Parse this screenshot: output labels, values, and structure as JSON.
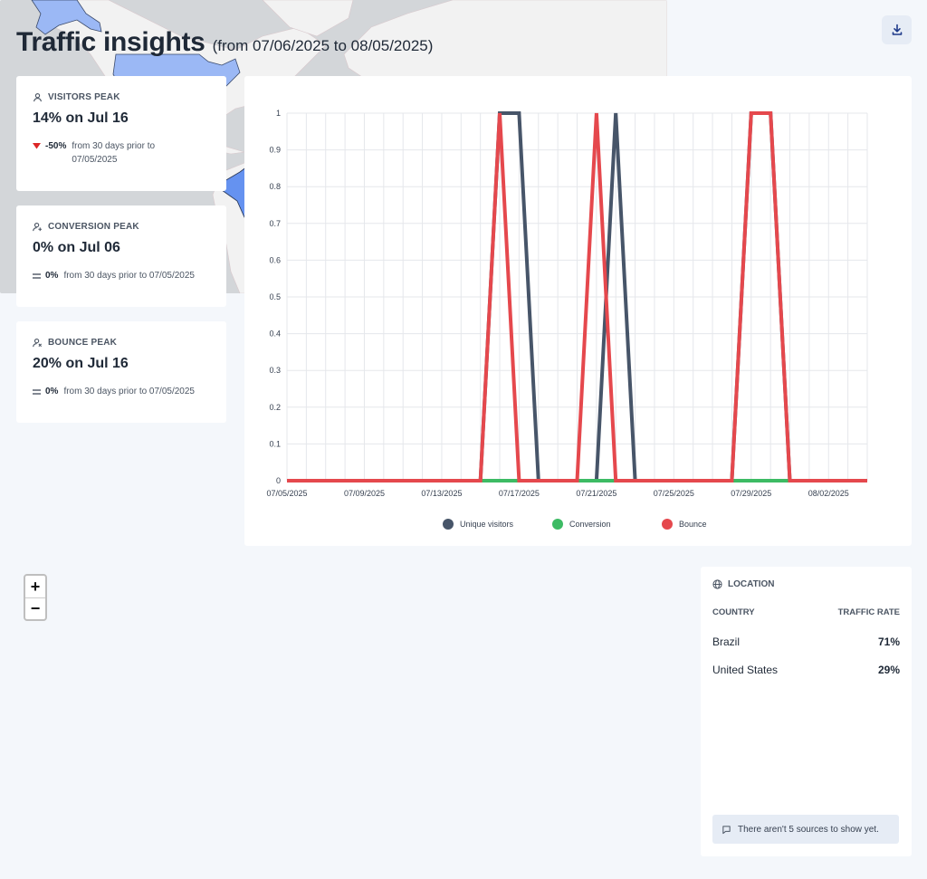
{
  "header": {
    "title": "Traffic insights",
    "range": "(from 07/06/2025 to 08/05/2025)",
    "download_icon": "download-icon"
  },
  "stats": [
    {
      "label": "VISITORS PEAK",
      "value": "14% on Jul 16",
      "delta": "-50%",
      "delta_text": "from 30 days prior to 07/05/2025",
      "icon": "user-icon"
    },
    {
      "label": "CONVERSION PEAK",
      "value": "0% on Jul 06",
      "delta": "0%",
      "delta_text": "from 30 days prior to 07/05/2025",
      "icon": "user-plus-icon"
    },
    {
      "label": "BOUNCE PEAK",
      "value": "20% on Jul 16",
      "delta": "0%",
      "delta_text": "from 30 days prior to 07/05/2025",
      "icon": "user-x-icon"
    }
  ],
  "chart_data": {
    "type": "line",
    "x": [
      "07/05/2025",
      "07/06/2025",
      "07/07/2025",
      "07/08/2025",
      "07/09/2025",
      "07/10/2025",
      "07/11/2025",
      "07/12/2025",
      "07/13/2025",
      "07/14/2025",
      "07/15/2025",
      "07/16/2025",
      "07/17/2025",
      "07/18/2025",
      "07/19/2025",
      "07/20/2025",
      "07/21/2025",
      "07/22/2025",
      "07/23/2025",
      "07/24/2025",
      "07/25/2025",
      "07/26/2025",
      "07/27/2025",
      "07/28/2025",
      "07/29/2025",
      "07/30/2025",
      "07/31/2025",
      "08/01/2025",
      "08/02/2025",
      "08/03/2025",
      "08/04/2025"
    ],
    "x_tick_labels": [
      "07/05/2025",
      "07/09/2025",
      "07/13/2025",
      "07/17/2025",
      "07/21/2025",
      "07/25/2025",
      "07/29/2025",
      "08/02/2025"
    ],
    "y_ticks": [
      "0",
      "0.1",
      "0.2",
      "0.3",
      "0.4",
      "0.5",
      "0.6",
      "0.7",
      "0.8",
      "0.9",
      "1"
    ],
    "ylim": [
      0,
      1
    ],
    "grid": true,
    "legend_position": "bottom",
    "series": [
      {
        "name": "Unique visitors",
        "color": "#475569",
        "values": [
          0,
          0,
          0,
          0,
          0,
          0,
          0,
          0,
          0,
          0,
          0,
          1,
          1,
          0,
          0,
          0,
          0,
          1,
          0,
          0,
          0,
          0,
          0,
          0,
          1,
          1,
          0,
          0,
          0,
          0,
          0
        ]
      },
      {
        "name": "Conversion",
        "color": "#3dbb64",
        "values": [
          0,
          0,
          0,
          0,
          0,
          0,
          0,
          0,
          0,
          0,
          0,
          0,
          0,
          0,
          0,
          0,
          0,
          0,
          0,
          0,
          0,
          0,
          0,
          0,
          0,
          0,
          0,
          0,
          0,
          0,
          0
        ]
      },
      {
        "name": "Bounce",
        "color": "#e5484d",
        "values": [
          0,
          0,
          0,
          0,
          0,
          0,
          0,
          0,
          0,
          0,
          0,
          1,
          0,
          0,
          0,
          0,
          1,
          0,
          0,
          0,
          0,
          0,
          0,
          0,
          1,
          1,
          0,
          0,
          0,
          0,
          0
        ]
      }
    ]
  },
  "map": {
    "zoom_in": "+",
    "zoom_out": "−",
    "highlighted": [
      "Brazil",
      "United States"
    ],
    "colors": {
      "brazil": "#6592f0",
      "united_states": "#9bb8f5",
      "water": "#d3d6d9",
      "land": "#f2f2f2"
    }
  },
  "location": {
    "title": "LOCATION",
    "col_country": "COUNTRY",
    "col_rate": "TRAFFIC RATE",
    "rows": [
      {
        "country": "Brazil",
        "rate": "71%"
      },
      {
        "country": "United States",
        "rate": "29%"
      }
    ],
    "note": "There aren't 5 sources to show yet."
  }
}
